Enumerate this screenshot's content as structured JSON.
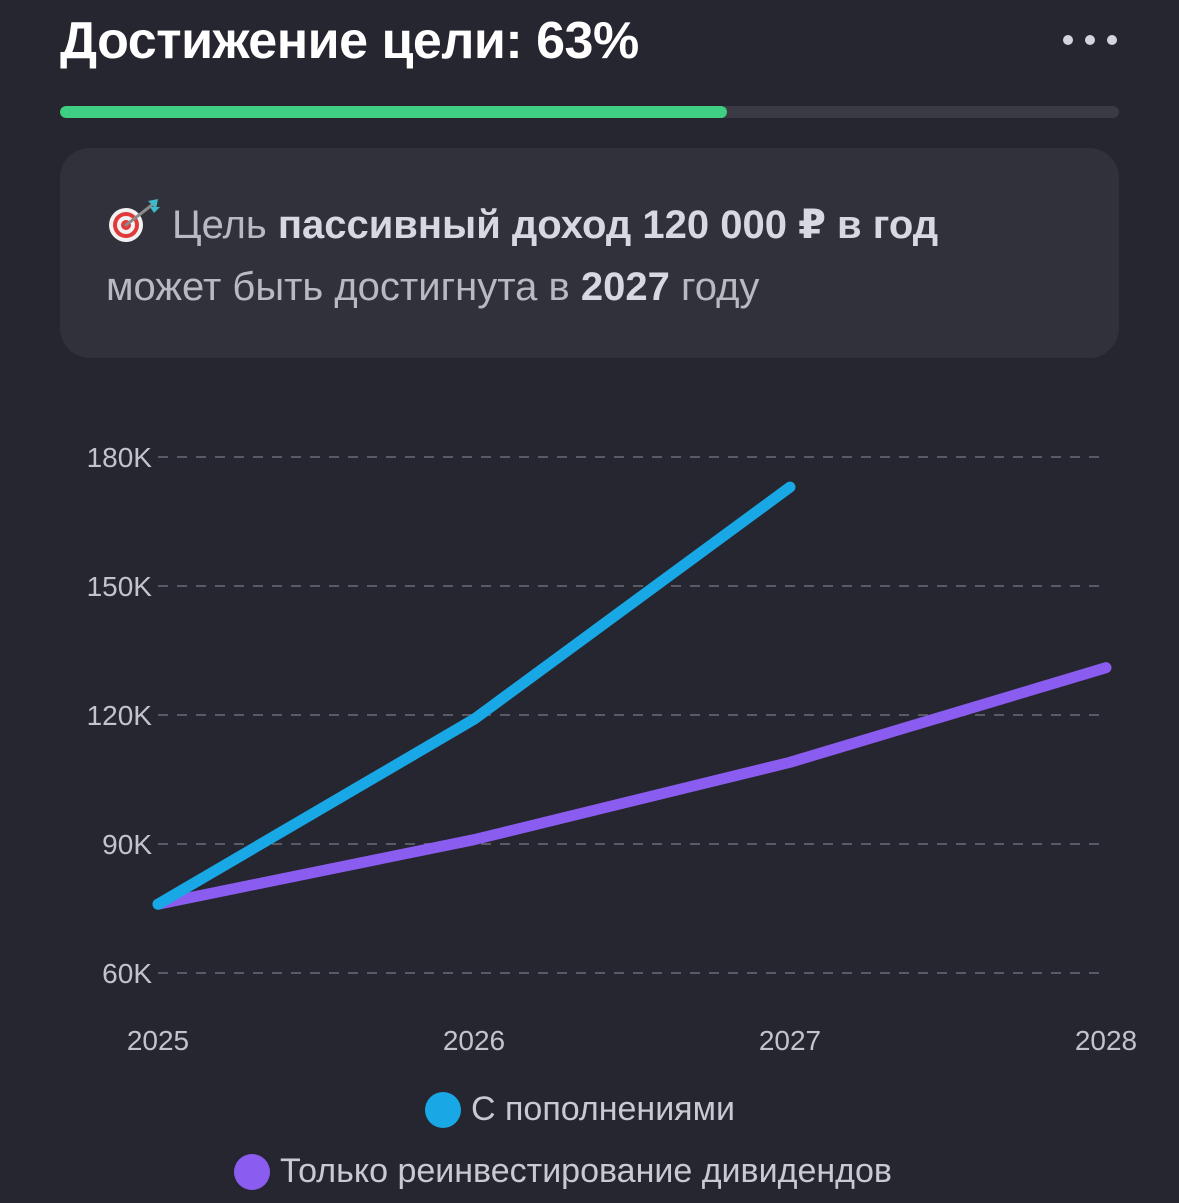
{
  "header": {
    "title": "Достижение цели: 63%",
    "menu_icon": "ellipsis-horizontal-icon"
  },
  "progress": {
    "value_percent": 63,
    "fill_color": "#3ecf84",
    "track_color": "#3a3a44"
  },
  "goal_card": {
    "icon": "dart-target-icon",
    "prefix": "Цель",
    "goal_name": "пассивный доход 120 000 ₽ в год",
    "middle": "может быть достигнута в",
    "year": "2027",
    "suffix": "году"
  },
  "chart_data": {
    "type": "line",
    "x": [
      "2025",
      "2026",
      "2027",
      "2028"
    ],
    "ylim": [
      60000,
      180000
    ],
    "y_ticks": [
      60000,
      90000,
      120000,
      150000,
      180000
    ],
    "y_tick_labels": [
      "60K",
      "90K",
      "120K",
      "150K",
      "180K"
    ],
    "grid": "horizontal dashed",
    "legend_position": "bottom-center",
    "series": [
      {
        "name": "С пополнениями",
        "color": "#18a8e6",
        "values": [
          76000,
          119000,
          173000,
          null
        ]
      },
      {
        "name": "Только реинвестирование дивидендов",
        "color": "#8b5cf0",
        "values": [
          76000,
          91000,
          109000,
          131000
        ]
      }
    ]
  }
}
